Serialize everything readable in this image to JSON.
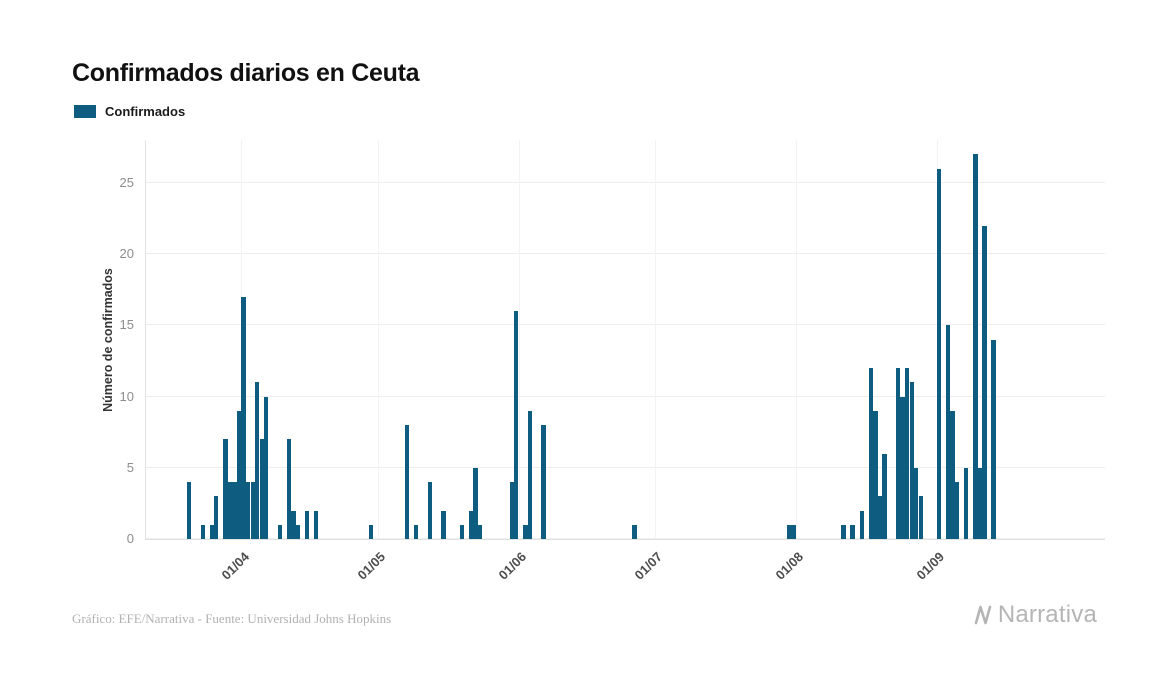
{
  "chart": {
    "title": "Confirmados diarios en Ceuta",
    "legend_label": "Confirmados",
    "y_label": "Número de confirmados",
    "source": "Gráfico: EFE/Narrativa - Fuente: Universidad Johns Hopkins",
    "brand": "Narrativa",
    "bar_color": "#0e5d80"
  },
  "chart_data": {
    "type": "bar",
    "title": "Confirmados diarios en Ceuta",
    "xlabel": "",
    "ylabel": "Número de confirmados",
    "series_name": "Confirmados",
    "x_start": "2020-03-11",
    "x_end": "2020-10-08",
    "y_max": 28,
    "yticks": [
      0,
      5,
      10,
      15,
      20,
      25
    ],
    "grid": "horizontal-and-faint-vertical",
    "legend_position": "top-left",
    "xticks": [
      {
        "date": "2020-04-01",
        "label": "01/04"
      },
      {
        "date": "2020-05-01",
        "label": "01/05"
      },
      {
        "date": "2020-06-01",
        "label": "01/06"
      },
      {
        "date": "2020-07-01",
        "label": "01/07"
      },
      {
        "date": "2020-08-01",
        "label": "01/08"
      },
      {
        "date": "2020-09-01",
        "label": "01/09"
      }
    ],
    "points": [
      {
        "date": "2020-03-20",
        "value": 4
      },
      {
        "date": "2020-03-23",
        "value": 1
      },
      {
        "date": "2020-03-25",
        "value": 1
      },
      {
        "date": "2020-03-26",
        "value": 3
      },
      {
        "date": "2020-03-28",
        "value": 7
      },
      {
        "date": "2020-03-29",
        "value": 4
      },
      {
        "date": "2020-03-30",
        "value": 4
      },
      {
        "date": "2020-03-31",
        "value": 9
      },
      {
        "date": "2020-04-01",
        "value": 17
      },
      {
        "date": "2020-04-02",
        "value": 4
      },
      {
        "date": "2020-04-03",
        "value": 4
      },
      {
        "date": "2020-04-04",
        "value": 11
      },
      {
        "date": "2020-04-05",
        "value": 7
      },
      {
        "date": "2020-04-06",
        "value": 10
      },
      {
        "date": "2020-04-09",
        "value": 1
      },
      {
        "date": "2020-04-11",
        "value": 7
      },
      {
        "date": "2020-04-12",
        "value": 2
      },
      {
        "date": "2020-04-13",
        "value": 1
      },
      {
        "date": "2020-04-15",
        "value": 2
      },
      {
        "date": "2020-04-17",
        "value": 2
      },
      {
        "date": "2020-04-29",
        "value": 1
      },
      {
        "date": "2020-05-07",
        "value": 8
      },
      {
        "date": "2020-05-09",
        "value": 1
      },
      {
        "date": "2020-05-12",
        "value": 4
      },
      {
        "date": "2020-05-15",
        "value": 2
      },
      {
        "date": "2020-05-19",
        "value": 1
      },
      {
        "date": "2020-05-21",
        "value": 2
      },
      {
        "date": "2020-05-22",
        "value": 5
      },
      {
        "date": "2020-05-23",
        "value": 1
      },
      {
        "date": "2020-05-30",
        "value": 4
      },
      {
        "date": "2020-05-31",
        "value": 16
      },
      {
        "date": "2020-06-02",
        "value": 1
      },
      {
        "date": "2020-06-03",
        "value": 9
      },
      {
        "date": "2020-06-06",
        "value": 8
      },
      {
        "date": "2020-06-26",
        "value": 1
      },
      {
        "date": "2020-07-30",
        "value": 1
      },
      {
        "date": "2020-07-31",
        "value": 1
      },
      {
        "date": "2020-08-11",
        "value": 1
      },
      {
        "date": "2020-08-13",
        "value": 1
      },
      {
        "date": "2020-08-15",
        "value": 2
      },
      {
        "date": "2020-08-17",
        "value": 12
      },
      {
        "date": "2020-08-18",
        "value": 9
      },
      {
        "date": "2020-08-19",
        "value": 3
      },
      {
        "date": "2020-08-20",
        "value": 6
      },
      {
        "date": "2020-08-23",
        "value": 12
      },
      {
        "date": "2020-08-24",
        "value": 10
      },
      {
        "date": "2020-08-25",
        "value": 12
      },
      {
        "date": "2020-08-26",
        "value": 11
      },
      {
        "date": "2020-08-27",
        "value": 5
      },
      {
        "date": "2020-08-28",
        "value": 3
      },
      {
        "date": "2020-09-01",
        "value": 26
      },
      {
        "date": "2020-09-03",
        "value": 15
      },
      {
        "date": "2020-09-04",
        "value": 9
      },
      {
        "date": "2020-09-05",
        "value": 4
      },
      {
        "date": "2020-09-07",
        "value": 5
      },
      {
        "date": "2020-09-09",
        "value": 27
      },
      {
        "date": "2020-09-10",
        "value": 5
      },
      {
        "date": "2020-09-11",
        "value": 22
      },
      {
        "date": "2020-09-13",
        "value": 14
      }
    ]
  }
}
